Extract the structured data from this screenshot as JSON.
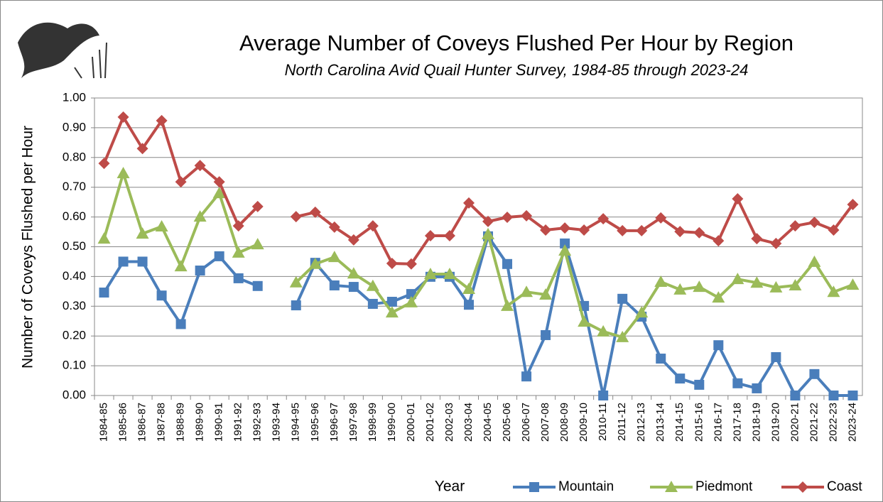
{
  "chart_data": {
    "type": "line",
    "title": "Average Number of Coveys Flushed Per Hour by Region",
    "subtitle": "North Carolina Avid Quail Hunter Survey, 1984-85 through 2023-24",
    "x_label": "Year",
    "y_label": "Number of Coveys Flushed per Hour",
    "categories": [
      "1984-85",
      "1985-86",
      "1986-87",
      "1987-88",
      "1988-89",
      "1989-90",
      "1990-91",
      "1991-92",
      "1992-93",
      "1993-94",
      "1994-95",
      "1995-96",
      "1996-97",
      "1997-98",
      "1998-99",
      "1999-00",
      "2000-01",
      "2001-02",
      "2002-03",
      "2003-04",
      "2004-05",
      "2005-06",
      "2006-07",
      "2007-08",
      "2008-09",
      "2009-10",
      "2010-11",
      "2011-12",
      "2012-13",
      "2013-14",
      "2014-15",
      "2015-16",
      "2016-17",
      "2017-18",
      "2018-19",
      "2019-20",
      "2020-21",
      "2021-22",
      "2022-23",
      "2023-24"
    ],
    "series": [
      {
        "name": "Mountain",
        "color": "#4a7ebb",
        "marker": "square",
        "values": [
          0.346,
          0.45,
          0.45,
          0.336,
          0.24,
          0.42,
          0.468,
          0.394,
          0.368,
          null,
          0.303,
          0.446,
          0.37,
          0.365,
          0.308,
          0.315,
          0.341,
          0.399,
          0.399,
          0.305,
          0.535,
          0.442,
          0.064,
          0.203,
          0.511,
          0.301,
          0,
          0.325,
          0.265,
          0.124,
          0.057,
          0.036,
          0.169,
          0.041,
          0.024,
          0.129,
          0,
          0.072,
          0,
          0
        ]
      },
      {
        "name": "Piedmont",
        "color": "#9bbb59",
        "marker": "triangle",
        "values": [
          0.527,
          0.747,
          0.544,
          0.568,
          0.434,
          0.601,
          0.68,
          0.48,
          0.508,
          null,
          0.38,
          0.442,
          0.465,
          0.41,
          0.368,
          0.279,
          0.313,
          0.408,
          0.408,
          0.358,
          0.542,
          0.301,
          0.348,
          0.339,
          0.487,
          0.248,
          0.215,
          0.196,
          0.279,
          0.382,
          0.356,
          0.365,
          0.329,
          0.391,
          0.379,
          0.363,
          0.37,
          0.449,
          0.348,
          0.372
        ]
      },
      {
        "name": "Coast",
        "color": "#be4b48",
        "marker": "diamond",
        "values": [
          0.78,
          0.936,
          0.83,
          0.924,
          0.718,
          0.773,
          0.718,
          0.57,
          0.635,
          null,
          0.601,
          0.616,
          0.566,
          0.523,
          0.57,
          0.444,
          0.442,
          0.537,
          0.537,
          0.647,
          0.585,
          0.599,
          0.604,
          0.556,
          0.563,
          0.556,
          0.594,
          0.554,
          0.554,
          0.597,
          0.551,
          0.547,
          0.52,
          0.661,
          0.527,
          0.511,
          0.57,
          0.582,
          0.556,
          0.642
        ]
      }
    ],
    "ylim": [
      0,
      1
    ],
    "yticks": [
      {
        "value": 0,
        "label": "0.00"
      },
      {
        "value": 0.1,
        "label": "0.10"
      },
      {
        "value": 0.2,
        "label": "0.20"
      },
      {
        "value": 0.3,
        "label": "0.30"
      },
      {
        "value": 0.4,
        "label": "0.40"
      },
      {
        "value": 0.5,
        "label": "0.50"
      },
      {
        "value": 0.6,
        "label": "0.60"
      },
      {
        "value": 0.7,
        "label": "0.70"
      },
      {
        "value": 0.8,
        "label": "0.80"
      },
      {
        "value": 0.9,
        "label": "0.90"
      },
      {
        "value": 1,
        "label": "1.00"
      }
    ],
    "grid": true,
    "legend": "bottom"
  }
}
